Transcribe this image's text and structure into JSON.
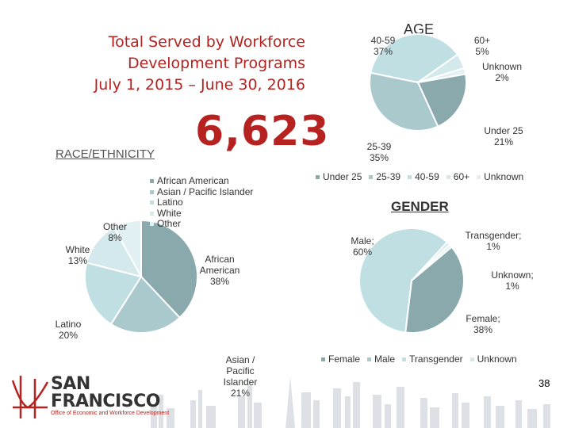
{
  "title": {
    "line1": "Total Served by Workforce",
    "line2": "Development Programs",
    "line3": "July 1, 2015 – June 30, 2016"
  },
  "total_served": "6,623",
  "page_number": "38",
  "logo": {
    "line1": "SAN",
    "line2": "FRANCISCO",
    "subtitle": "Office of Economic and Workforce Development"
  },
  "colors": {
    "accent": "#b5221f",
    "shade1": "#8aa9ad",
    "shade2": "#a9c9cd",
    "shade3": "#c0dfe3",
    "shade4": "#d3e9ec",
    "shade5": "#e1f0f2"
  },
  "chart_data": [
    {
      "type": "pie",
      "title": "RACE/ETHNICITY",
      "categories": [
        "African American",
        "Asian / Pacific Islander",
        "Latino",
        "White",
        "Other"
      ],
      "values": [
        38,
        21,
        20,
        13,
        8
      ],
      "labels": [
        "African American 38%",
        "Asian / Pacific Islander 21%",
        "Latino 20%",
        "White 13%",
        "Other 8%"
      ],
      "legend": "top-right"
    },
    {
      "type": "pie",
      "title": "AGE",
      "categories": [
        "Under 25",
        "25-39",
        "40-59",
        "60+",
        "Unknown"
      ],
      "values": [
        21,
        35,
        37,
        5,
        2
      ],
      "labels": [
        "Under 25 21%",
        "25-39 35%",
        "40-59 37%",
        "60+ 5%",
        "Unknown 2%"
      ],
      "legend": "bottom"
    },
    {
      "type": "pie",
      "title": "GENDER",
      "categories": [
        "Female",
        "Male",
        "Transgender",
        "Unknown"
      ],
      "values": [
        38,
        60,
        1,
        1
      ],
      "labels": [
        "Female; 38%",
        "Male; 60%",
        "Transgender; 1%",
        "Unknown; 1%"
      ],
      "legend": "bottom"
    }
  ]
}
